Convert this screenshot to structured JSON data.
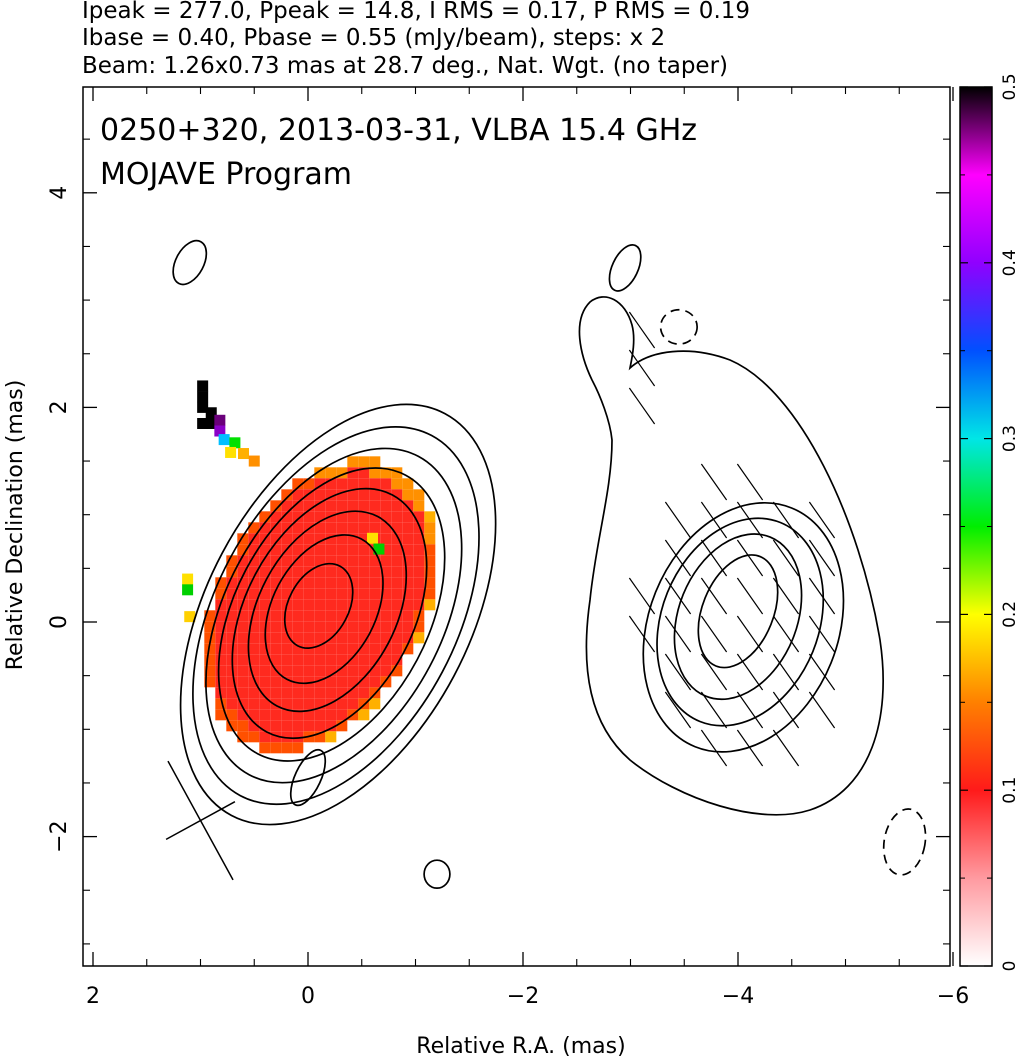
{
  "header": {
    "line1": "Ipeak = 277.0, Ppeak = 14.8, I RMS = 0.17, P RMS = 0.19",
    "line2": "Ibase = 0.40, Pbase = 0.55 (mJy/beam), steps: x 2",
    "line3": "Beam: 1.26x0.73 mas at 28.7 deg., Nat. Wgt. (no taper)"
  },
  "chart_data": {
    "type": "heatmap",
    "title": "0250+320, 2013-03-31, VLBA 15.4 GHz",
    "subtitle": "MOJAVE Program",
    "xlabel": "Relative R.A. (mas)",
    "ylabel": "Relative Declination (mas)",
    "xlim": [
      2.1,
      -6.1
    ],
    "ylim": [
      -3.2,
      5.0
    ],
    "x_ticks": [
      2,
      0,
      -2,
      -4,
      -6
    ],
    "x_tick_labels": [
      "2",
      "0",
      "−2",
      "−4",
      "−6"
    ],
    "y_ticks": [
      -2,
      0,
      2,
      4
    ],
    "y_tick_labels": [
      "−2",
      "0",
      "2",
      "4"
    ],
    "colorbar": {
      "range": [
        0,
        0.5
      ],
      "ticks": [
        0,
        0.1,
        0.2,
        0.3,
        0.4,
        0.5
      ],
      "tick_labels": [
        "0",
        "0.1",
        "0.2",
        "0.3",
        "0.4",
        "0.5"
      ],
      "colors": [
        "#ffffff",
        "#ff9aa0",
        "#ff1a1a",
        "#ff8000",
        "#ffff00",
        "#00ee00",
        "#00e6e6",
        "#0050ff",
        "#9000ff",
        "#ff00ff",
        "#000000"
      ]
    },
    "left_panel": {
      "center": [
        0.0,
        0.0
      ],
      "contours_solid": [
        {
          "cx": -0.1,
          "cy": 0.15,
          "rx": 0.28,
          "ry": 0.42,
          "angle_deg": 28
        },
        {
          "cx": -0.15,
          "cy": 0.12,
          "rx": 0.48,
          "ry": 0.74,
          "angle_deg": 28
        },
        {
          "cx": -0.18,
          "cy": 0.1,
          "rx": 0.64,
          "ry": 1.0,
          "angle_deg": 28
        },
        {
          "cx": -0.2,
          "cy": 0.08,
          "rx": 0.78,
          "ry": 1.25,
          "angle_deg": 28
        },
        {
          "cx": -0.22,
          "cy": 0.07,
          "rx": 0.9,
          "ry": 1.47,
          "angle_deg": 28
        },
        {
          "cx": -0.24,
          "cy": 0.06,
          "rx": 1.01,
          "ry": 1.68,
          "angle_deg": 28
        },
        {
          "cx": -0.26,
          "cy": 0.06,
          "rx": 1.12,
          "ry": 1.9,
          "angle_deg": 28
        },
        {
          "cx": -0.28,
          "cy": 0.07,
          "rx": 1.22,
          "ry": 2.12,
          "angle_deg": 28
        },
        {
          "cx": 1.1,
          "cy": 3.35,
          "rx": 0.13,
          "ry": 0.22,
          "angle_deg": 28
        },
        {
          "cx": 0.0,
          "cy": -1.45,
          "rx": 0.12,
          "ry": 0.28,
          "angle_deg": 25
        },
        {
          "cx": -1.2,
          "cy": -2.35,
          "rx": 0.12,
          "ry": 0.13,
          "angle_deg": 0
        }
      ],
      "polarization_region": {
        "cx": -0.12,
        "cy": 0.15,
        "rx": 0.95,
        "ry": 1.45,
        "angle_deg": 28,
        "fraction_core": 0.1,
        "fraction_edge": 0.2,
        "fraction_tip": 0.5
      }
    },
    "right_panel": {
      "center": [
        -4.0,
        0.0
      ],
      "contours_solid": [
        {
          "cx": -4.0,
          "cy": 0.1,
          "rx": 0.33,
          "ry": 0.55,
          "angle_deg": 22
        },
        {
          "cx": -4.0,
          "cy": 0.05,
          "rx": 0.55,
          "ry": 0.8,
          "angle_deg": 22
        },
        {
          "cx": -4.02,
          "cy": 0.0,
          "rx": 0.73,
          "ry": 1.0,
          "angle_deg": 22
        },
        {
          "cx": -4.05,
          "cy": -0.05,
          "rx": 0.88,
          "ry": 1.2,
          "angle_deg": 22
        },
        {
          "cx": -2.95,
          "cy": 3.3,
          "rx": 0.12,
          "ry": 0.23,
          "angle_deg": 25
        }
      ],
      "contours_dashed": [
        {
          "cx": -3.45,
          "cy": 2.75,
          "rx": 0.17,
          "ry": 0.16,
          "angle_deg": 0
        },
        {
          "cx": -5.55,
          "cy": -2.05,
          "rx": 0.19,
          "ry": 0.31,
          "angle_deg": 10
        }
      ]
    },
    "beam": {
      "major_mas": 1.26,
      "minor_mas": 0.73,
      "pa_deg": 28.7,
      "center": [
        1.0,
        -1.85
      ]
    }
  }
}
